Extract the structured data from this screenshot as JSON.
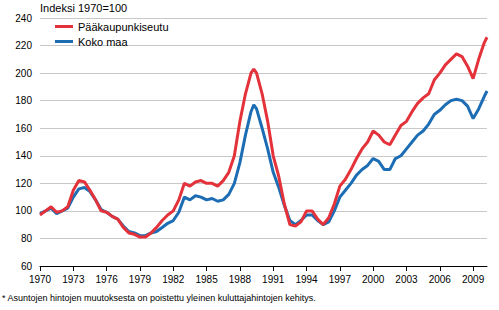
{
  "chart_data": {
    "type": "line",
    "y_label": "Indeksi 1970=100",
    "footnote": "* Asuntojen hintojen muutoksesta on poistettu yleinen kuluttajahintojen kehitys.",
    "x": [
      1970.0,
      1970.5,
      1971.0,
      1971.5,
      1972.0,
      1972.5,
      1973.0,
      1973.5,
      1974.0,
      1974.5,
      1975.0,
      1975.5,
      1976.0,
      1976.5,
      1977.0,
      1977.5,
      1978.0,
      1978.5,
      1979.0,
      1979.5,
      1980.0,
      1980.5,
      1981.0,
      1981.5,
      1982.0,
      1982.5,
      1983.0,
      1983.5,
      1984.0,
      1984.5,
      1985.0,
      1985.5,
      1986.0,
      1986.5,
      1987.0,
      1987.5,
      1988.0,
      1988.5,
      1989.0,
      1989.25,
      1989.5,
      1990.0,
      1990.5,
      1991.0,
      1991.5,
      1992.0,
      1992.5,
      1993.0,
      1993.5,
      1994.0,
      1994.5,
      1995.0,
      1995.5,
      1996.0,
      1996.5,
      1997.0,
      1997.5,
      1998.0,
      1998.5,
      1999.0,
      1999.5,
      2000.0,
      2000.5,
      2001.0,
      2001.5,
      2002.0,
      2002.5,
      2003.0,
      2003.5,
      2004.0,
      2004.5,
      2005.0,
      2005.5,
      2006.0,
      2006.5,
      2007.0,
      2007.5,
      2008.0,
      2008.5,
      2009.0,
      2009.5,
      2010.0,
      2010.25
    ],
    "series": [
      {
        "name": "Pääkaupunkiseutu",
        "color": "#e4323b",
        "values": [
          97,
          100,
          103,
          99,
          100,
          103,
          115,
          122,
          121,
          115,
          108,
          100,
          99,
          96,
          94,
          88,
          84,
          83,
          81,
          81,
          84,
          88,
          93,
          97,
          100,
          108,
          120,
          118,
          121,
          122,
          120,
          120,
          118,
          122,
          128,
          140,
          165,
          185,
          200,
          203,
          200,
          185,
          165,
          140,
          125,
          105,
          90,
          89,
          92,
          100,
          100,
          94,
          90,
          95,
          105,
          118,
          123,
          130,
          138,
          145,
          150,
          158,
          155,
          150,
          148,
          155,
          162,
          165,
          172,
          178,
          182,
          185,
          195,
          200,
          206,
          210,
          214,
          212,
          205,
          196,
          210,
          222,
          226
        ]
      },
      {
        "name": "Koko maa",
        "color": "#1c6db4",
        "values": [
          98,
          100,
          102,
          98,
          100,
          102,
          110,
          116,
          117,
          114,
          108,
          101,
          99,
          96,
          94,
          89,
          85,
          84,
          82,
          82,
          84,
          85,
          88,
          91,
          93,
          99,
          110,
          108,
          111,
          110,
          108,
          109,
          107,
          108,
          112,
          120,
          135,
          155,
          172,
          177,
          174,
          160,
          145,
          128,
          117,
          104,
          93,
          90,
          93,
          97,
          97,
          93,
          90,
          92,
          100,
          110,
          115,
          120,
          126,
          130,
          133,
          138,
          136,
          130,
          130,
          138,
          140,
          145,
          150,
          155,
          158,
          163,
          170,
          173,
          177,
          180,
          181,
          180,
          176,
          167,
          174,
          183,
          187
        ]
      }
    ],
    "xlim": [
      1970,
      2010.25
    ],
    "xticks": [
      1970,
      1973,
      1976,
      1979,
      1982,
      1985,
      1988,
      1991,
      1994,
      1997,
      2000,
      2003,
      2006,
      2009
    ],
    "ylim": [
      60,
      240
    ],
    "yticks": [
      60,
      80,
      100,
      120,
      140,
      160,
      180,
      200,
      220,
      240
    ],
    "grid": true,
    "legend": "top-left"
  }
}
